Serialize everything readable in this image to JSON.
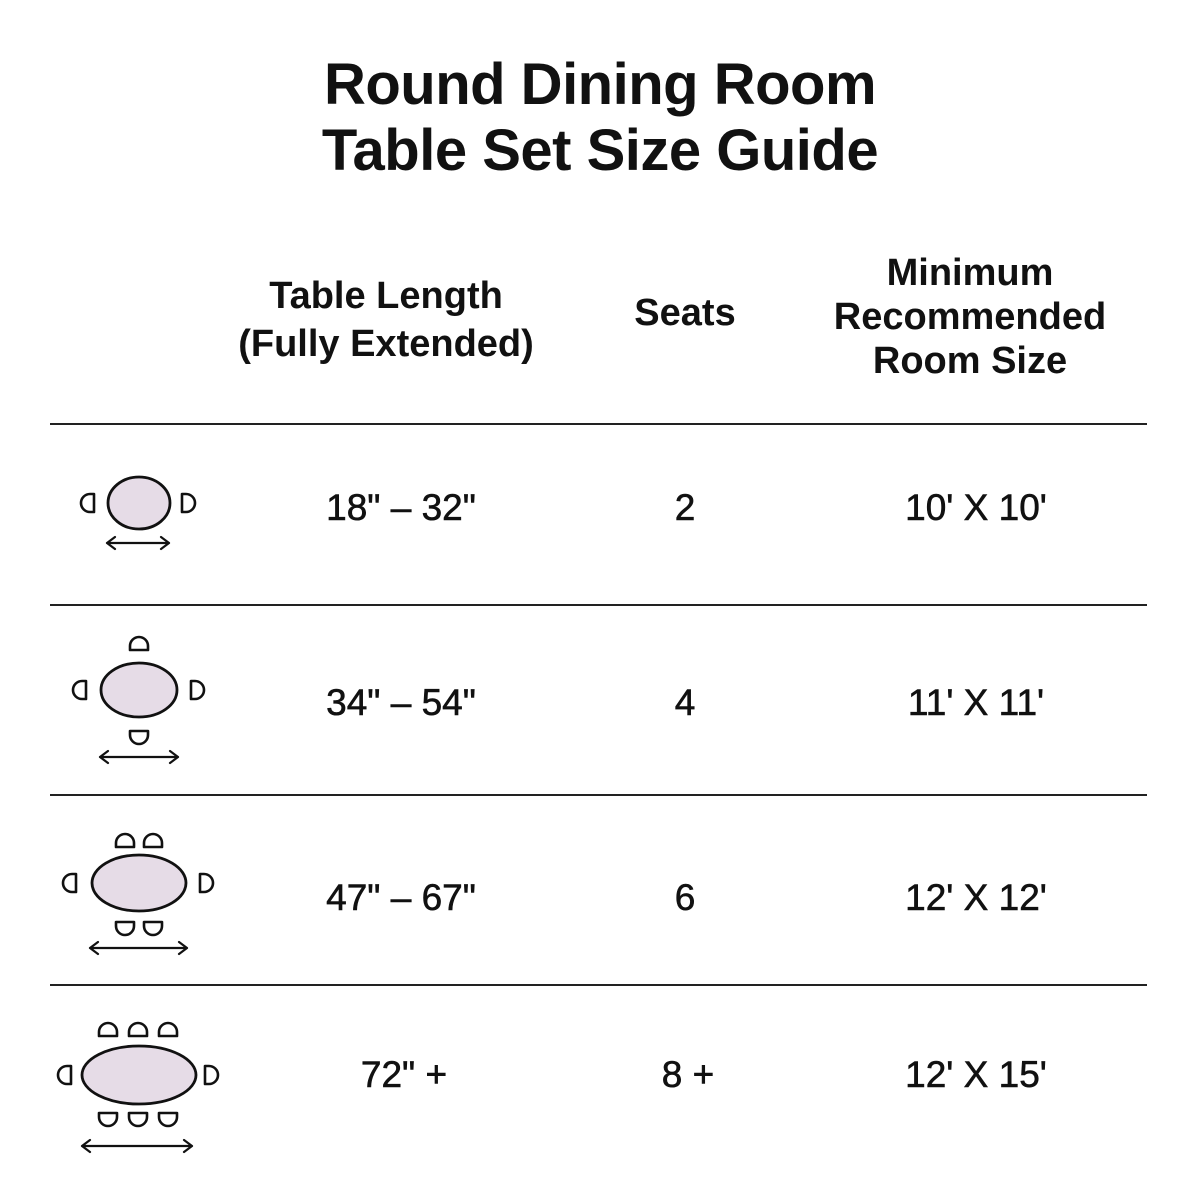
{
  "title": [
    "Round Dining Room",
    "Table Set Size Guide"
  ],
  "headers": {
    "length": [
      "Table Length",
      "(Fully Extended)"
    ],
    "seats": "Seats",
    "room": [
      "Minimum",
      "Recommended",
      "Room Size"
    ]
  },
  "rows": [
    {
      "length": "18\" – 32\"",
      "seats": "2",
      "room": "10' X 10'",
      "icon_seats": 2
    },
    {
      "length": "34\" – 54\"",
      "seats": "4",
      "room": "11' X 11'",
      "icon_seats": 4
    },
    {
      "length": "47\" – 67\"",
      "seats": "6",
      "room": "12' X 12'",
      "icon_seats": 6
    },
    {
      "length": "72\" +",
      "seats": "8 +",
      "room": "12' X 15'",
      "icon_seats": 8
    }
  ],
  "colors": {
    "table_fill": "#e6dce7",
    "ink": "#111111"
  }
}
